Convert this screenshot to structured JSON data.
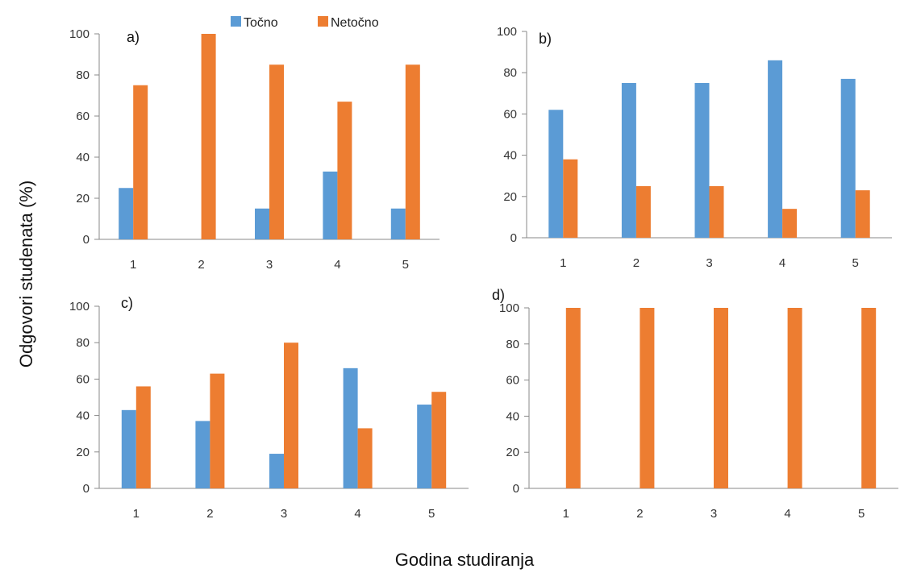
{
  "figure": {
    "ylabel": "Odgovori studenata (%)",
    "xlabel": "Godina studiranja"
  },
  "legend": [
    {
      "name": "Točno",
      "color": "#5B9BD5"
    },
    {
      "name": "Netočno",
      "color": "#ED7D31"
    }
  ],
  "chart_data": [
    {
      "panel": "a)",
      "type": "bar",
      "categories": [
        "1",
        "2",
        "3",
        "4",
        "5"
      ],
      "series": [
        {
          "name": "Točno",
          "color": "#5B9BD5",
          "values": [
            25,
            0,
            15,
            33,
            15
          ]
        },
        {
          "name": "Netočno",
          "color": "#ED7D31",
          "values": [
            75,
            100,
            85,
            67,
            85
          ]
        }
      ],
      "ylim": [
        0,
        100
      ],
      "yticks": [
        0,
        20,
        40,
        60,
        80,
        100
      ],
      "legend_position": "top"
    },
    {
      "panel": "b)",
      "type": "bar",
      "categories": [
        "1",
        "2",
        "3",
        "4",
        "5"
      ],
      "series": [
        {
          "name": "Točno",
          "color": "#5B9BD5",
          "values": [
            62,
            75,
            75,
            86,
            77
          ]
        },
        {
          "name": "Netočno",
          "color": "#ED7D31",
          "values": [
            38,
            25,
            25,
            14,
            23
          ]
        }
      ],
      "ylim": [
        0,
        100
      ],
      "yticks": [
        0,
        20,
        40,
        60,
        80,
        100
      ]
    },
    {
      "panel": "c)",
      "type": "bar",
      "categories": [
        "1",
        "2",
        "3",
        "4",
        "5"
      ],
      "series": [
        {
          "name": "Točno",
          "color": "#5B9BD5",
          "values": [
            43,
            37,
            19,
            66,
            46
          ]
        },
        {
          "name": "Netočno",
          "color": "#ED7D31",
          "values": [
            56,
            63,
            80,
            33,
            53
          ]
        }
      ],
      "ylim": [
        0,
        100
      ],
      "yticks": [
        0,
        20,
        40,
        60,
        80,
        100
      ]
    },
    {
      "panel": "d)",
      "type": "bar",
      "categories": [
        "1",
        "2",
        "3",
        "4",
        "5"
      ],
      "series": [
        {
          "name": "Točno",
          "color": "#5B9BD5",
          "values": [
            0,
            0,
            0,
            0,
            0
          ]
        },
        {
          "name": "Netočno",
          "color": "#ED7D31",
          "values": [
            100,
            100,
            100,
            100,
            100
          ]
        }
      ],
      "ylim": [
        0,
        100
      ],
      "yticks": [
        0,
        20,
        40,
        60,
        80,
        100
      ]
    }
  ]
}
